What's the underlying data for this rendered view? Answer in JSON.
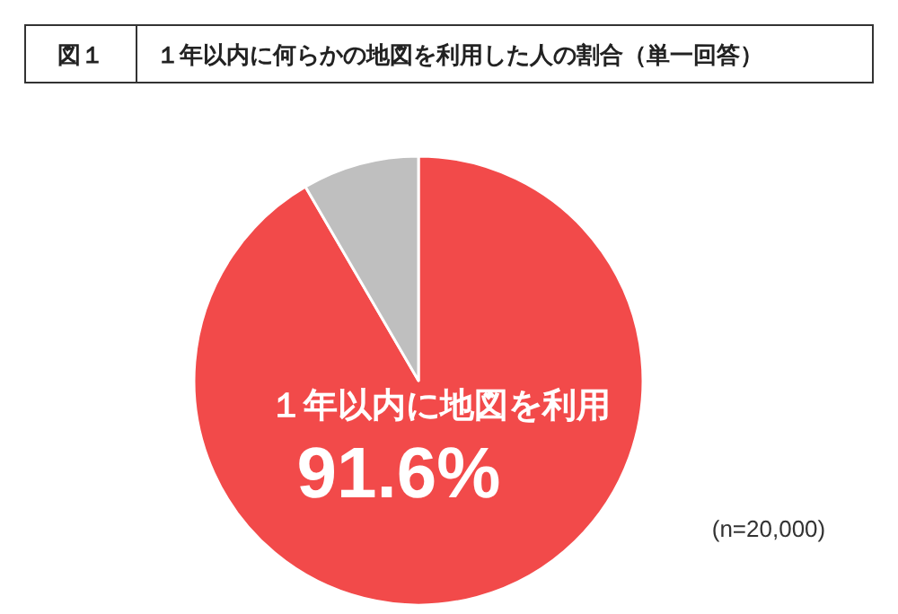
{
  "chart_data": {
    "type": "pie",
    "title": "１年以内に何らかの地図を利用した人の割合（単一回答）",
    "categories": [
      "１年以内に地図を利用",
      null
    ],
    "values": [
      91.6,
      8.4
    ],
    "colors": [
      "#f24a4a",
      "#bfbfbf"
    ],
    "value_labels": [
      "91.6%",
      null
    ],
    "annotations": [
      "図１",
      "(n=20,000)"
    ]
  }
}
